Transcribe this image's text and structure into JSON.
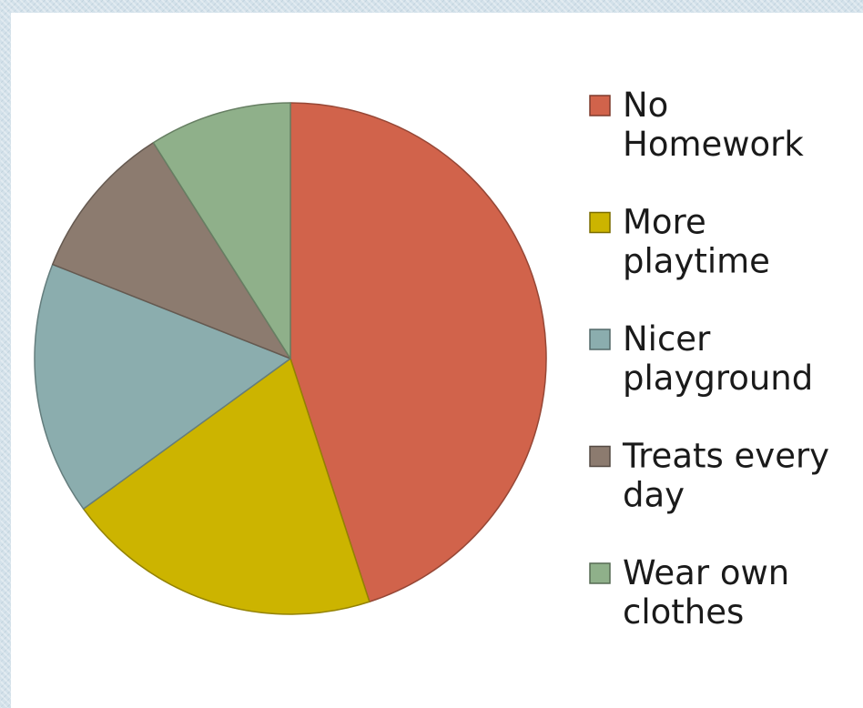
{
  "chart_data": {
    "type": "pie",
    "title": "",
    "legend_position": "right",
    "start_angle_deg": 0,
    "direction": "clockwise",
    "slices": [
      {
        "label": "No Homework",
        "label_lines": [
          "No",
          "Homework"
        ],
        "value": 45,
        "color": "#d1634b"
      },
      {
        "label": "More playtime",
        "label_lines": [
          "More",
          "playtime"
        ],
        "value": 20,
        "color": "#ccb400"
      },
      {
        "label": "Nicer playground",
        "label_lines": [
          "Nicer",
          "playground"
        ],
        "value": 16,
        "color": "#8badae"
      },
      {
        "label": "Treats every day",
        "label_lines": [
          "Treats every",
          "day"
        ],
        "value": 10,
        "color": "#8c7b6f"
      },
      {
        "label": "Wear own clothes",
        "label_lines": [
          "Wear own",
          "clothes"
        ],
        "value": 9,
        "color": "#8fb08a"
      }
    ]
  }
}
